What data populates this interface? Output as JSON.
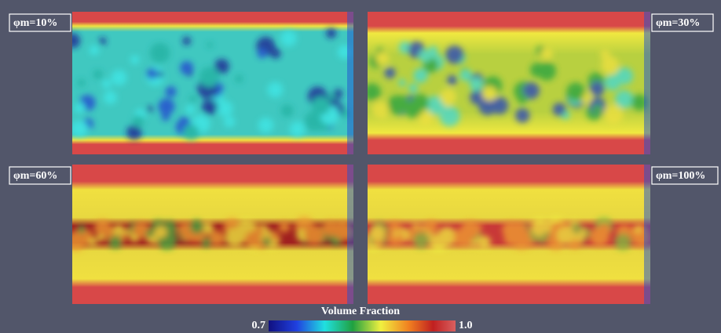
{
  "panels": [
    {
      "label": "φm=10%"
    },
    {
      "label": "φm=30%"
    },
    {
      "label": "φm=60%"
    },
    {
      "label": "φm=100%"
    }
  ],
  "colorbar": {
    "title": "Volume Fraction",
    "min_label": "0.7",
    "max_label": "1.0"
  }
}
